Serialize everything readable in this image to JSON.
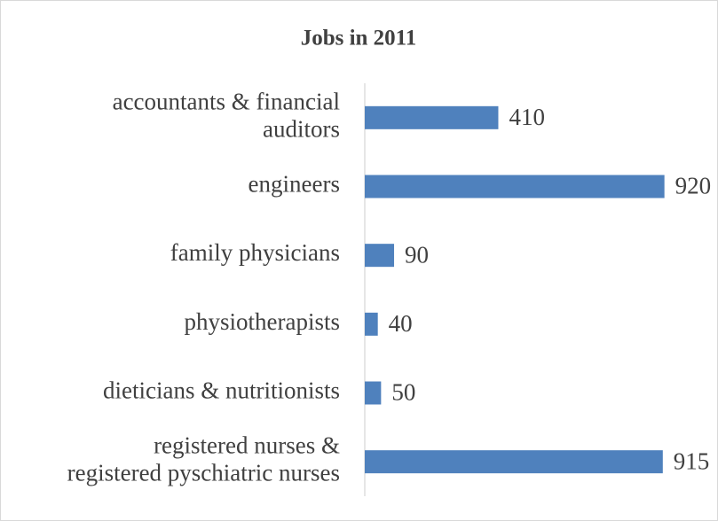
{
  "chart_data": {
    "type": "bar",
    "orientation": "horizontal",
    "title": "Jobs in 2011",
    "categories": [
      "accountants & financial\nauditors",
      "engineers",
      "family physicians",
      "physiotherapists",
      "dieticians & nutritionists",
      "registered nurses &\nregistered pyschiatric nurses"
    ],
    "values": [
      410,
      920,
      90,
      40,
      50,
      915
    ],
    "color": "#4f81bd",
    "xlim": [
      0,
      1000
    ]
  }
}
